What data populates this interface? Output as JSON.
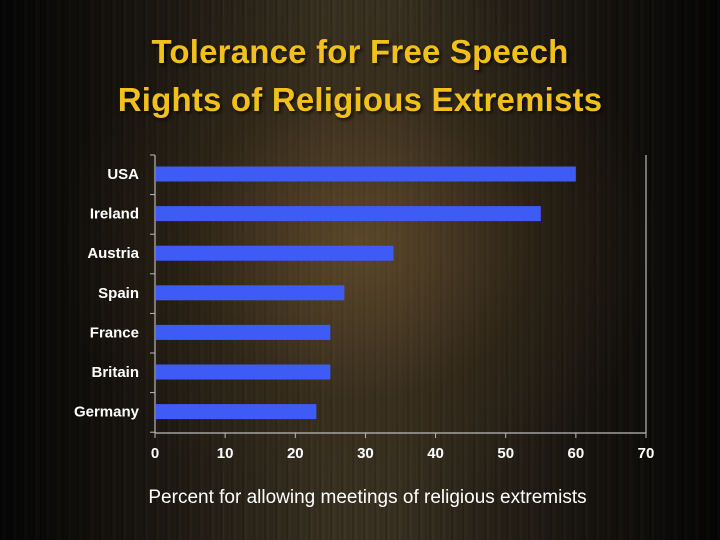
{
  "slide": {
    "title_line1": "Tolerance for Free Speech",
    "title_line2": "Rights of Religious Extremists",
    "caption": "Percent for allowing meetings of religious extremists"
  },
  "colors": {
    "title": "#f2c01a",
    "bar": "#3e5cf5",
    "text": "#ffffff",
    "axis": "#bbbbbb"
  },
  "chart_data": {
    "type": "bar",
    "orientation": "horizontal",
    "categories": [
      "USA",
      "Ireland",
      "Austria",
      "Spain",
      "France",
      "Britain",
      "Germany"
    ],
    "values": [
      60,
      55,
      34,
      27,
      25,
      25,
      23
    ],
    "xlim": [
      0,
      70
    ],
    "xticks": [
      0,
      10,
      20,
      30,
      40,
      50,
      60,
      70
    ],
    "xlabel": "Percent for allowing meetings of religious extremists",
    "grid": false
  }
}
